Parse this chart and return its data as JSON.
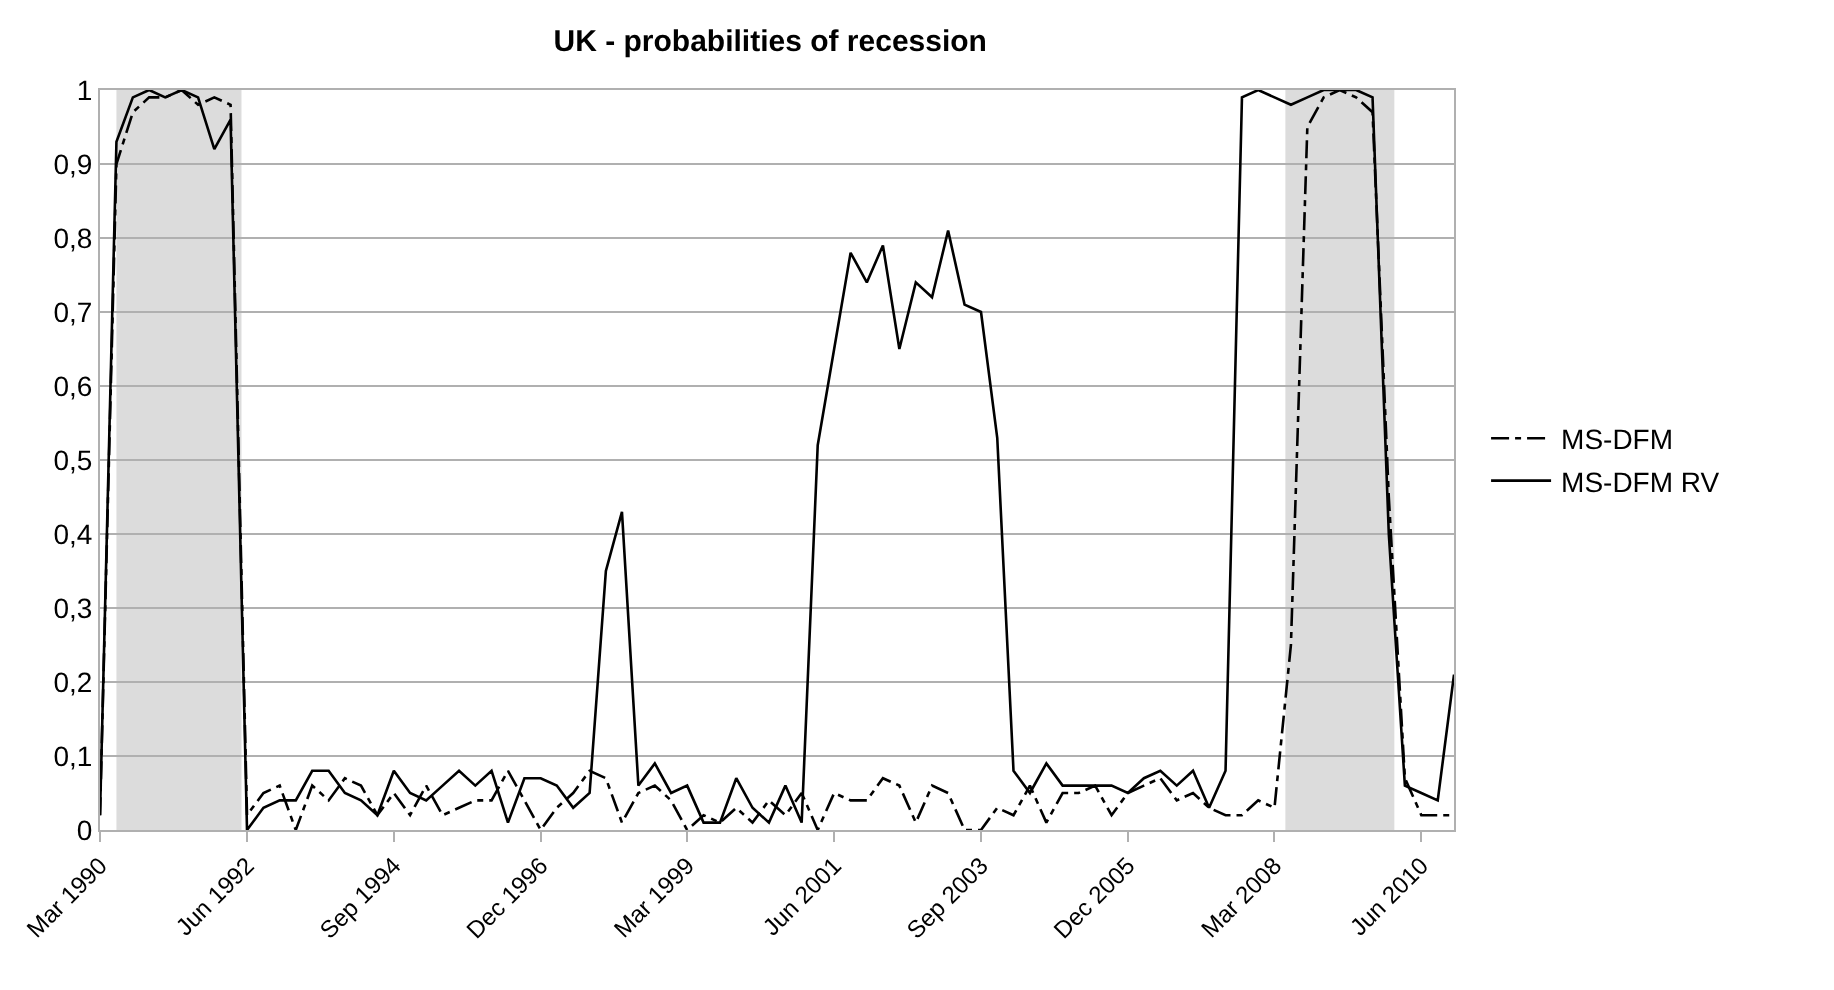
{
  "chart_data": {
    "type": "line",
    "title": "UK - probabilities of recession",
    "x": [
      "1990-03",
      "1990-06",
      "1990-09",
      "1990-12",
      "1991-03",
      "1991-06",
      "1991-09",
      "1991-12",
      "1992-03",
      "1992-06",
      "1992-09",
      "1992-12",
      "1993-03",
      "1993-06",
      "1993-09",
      "1993-12",
      "1994-03",
      "1994-06",
      "1994-09",
      "1994-12",
      "1995-03",
      "1995-06",
      "1995-09",
      "1995-12",
      "1996-03",
      "1996-06",
      "1996-09",
      "1996-12",
      "1997-03",
      "1997-06",
      "1997-09",
      "1997-12",
      "1998-03",
      "1998-06",
      "1998-09",
      "1998-12",
      "1999-03",
      "1999-06",
      "1999-09",
      "1999-12",
      "2000-03",
      "2000-06",
      "2000-09",
      "2000-12",
      "2001-03",
      "2001-06",
      "2001-09",
      "2001-12",
      "2002-03",
      "2002-06",
      "2002-09",
      "2002-12",
      "2003-03",
      "2003-06",
      "2003-09",
      "2003-12",
      "2004-03",
      "2004-06",
      "2004-09",
      "2004-12",
      "2005-03",
      "2005-06",
      "2005-09",
      "2005-12",
      "2006-03",
      "2006-06",
      "2006-09",
      "2006-12",
      "2007-03",
      "2007-06",
      "2007-09",
      "2007-12",
      "2008-03",
      "2008-06",
      "2008-09",
      "2008-12",
      "2009-03",
      "2009-06",
      "2009-09",
      "2009-12",
      "2010-03",
      "2010-06",
      "2010-09",
      "2010-12"
    ],
    "series": [
      {
        "name": "MS-DFM",
        "color": "#000000",
        "line_style": "dashed",
        "values": [
          0.02,
          0.9,
          0.97,
          0.99,
          0.99,
          1.0,
          0.98,
          0.99,
          0.98,
          0.02,
          0.05,
          0.06,
          0.0,
          0.06,
          0.04,
          0.07,
          0.06,
          0.02,
          0.05,
          0.02,
          0.06,
          0.02,
          0.03,
          0.04,
          0.04,
          0.08,
          0.04,
          0.0,
          0.03,
          0.05,
          0.08,
          0.07,
          0.01,
          0.05,
          0.06,
          0.04,
          0.0,
          0.02,
          0.01,
          0.03,
          0.01,
          0.04,
          0.02,
          0.05,
          0.0,
          0.05,
          0.04,
          0.04,
          0.07,
          0.06,
          0.01,
          0.06,
          0.05,
          0.0,
          0.0,
          0.03,
          0.02,
          0.06,
          0.01,
          0.05,
          0.05,
          0.06,
          0.02,
          0.05,
          0.06,
          0.07,
          0.04,
          0.05,
          0.03,
          0.02,
          0.02,
          0.04,
          0.03,
          0.25,
          0.95,
          0.99,
          1.0,
          0.99,
          0.97,
          0.45,
          0.07,
          0.02,
          0.02,
          0.02
        ]
      },
      {
        "name": "MS-DFM RV",
        "color": "#000000",
        "line_style": "solid",
        "values": [
          0.02,
          0.93,
          0.99,
          1.0,
          0.99,
          1.0,
          0.99,
          0.92,
          0.96,
          0.0,
          0.03,
          0.04,
          0.04,
          0.08,
          0.08,
          0.05,
          0.04,
          0.02,
          0.08,
          0.05,
          0.04,
          0.06,
          0.08,
          0.06,
          0.08,
          0.01,
          0.07,
          0.07,
          0.06,
          0.03,
          0.05,
          0.35,
          0.43,
          0.06,
          0.09,
          0.05,
          0.06,
          0.01,
          0.01,
          0.07,
          0.03,
          0.01,
          0.06,
          0.01,
          0.52,
          0.65,
          0.78,
          0.74,
          0.79,
          0.65,
          0.74,
          0.72,
          0.81,
          0.71,
          0.7,
          0.53,
          0.08,
          0.05,
          0.09,
          0.06,
          0.06,
          0.06,
          0.06,
          0.05,
          0.07,
          0.08,
          0.06,
          0.08,
          0.03,
          0.08,
          0.99,
          1.0,
          0.99,
          0.98,
          0.99,
          1.0,
          1.0,
          1.0,
          0.99,
          0.4,
          0.06,
          0.05,
          0.04,
          0.21
        ]
      }
    ],
    "xlim": [
      "1990-03",
      "2010-12"
    ],
    "xticks": [
      {
        "value": "1990-03",
        "label": "Mar 1990"
      },
      {
        "value": "1992-06",
        "label": "Jun 1992"
      },
      {
        "value": "1994-09",
        "label": "Sep 1994"
      },
      {
        "value": "1996-12",
        "label": "Dec 1996"
      },
      {
        "value": "1999-03",
        "label": "Mar 1999"
      },
      {
        "value": "2001-06",
        "label": "Jun 2001"
      },
      {
        "value": "2003-09",
        "label": "Sep 2003"
      },
      {
        "value": "2005-12",
        "label": "Dec 2005"
      },
      {
        "value": "2008-03",
        "label": "Mar 2008"
      },
      {
        "value": "2010-06",
        "label": "Jun 2010"
      }
    ],
    "ylim": [
      0,
      1
    ],
    "yticks": [
      0,
      {
        "value": 0.1,
        "label": "0,1"
      },
      {
        "value": 0.2,
        "label": "0,2"
      },
      {
        "value": 0.3,
        "label": "0,3"
      },
      {
        "value": 0.4,
        "label": "0,4"
      },
      {
        "value": 0.5,
        "label": "0,5"
      },
      {
        "value": 0.6,
        "label": "0,6"
      },
      {
        "value": 0.7,
        "label": "0,7"
      },
      {
        "value": 0.8,
        "label": "0,8"
      },
      {
        "value": 0.9,
        "label": "0,9"
      },
      1
    ],
    "bands": [
      {
        "axis": "x",
        "from": "1990-06",
        "to": "1992-05",
        "color": "#dcdcdc"
      },
      {
        "axis": "x",
        "from": "2008-05",
        "to": "2010-01",
        "color": "#dcdcdc"
      }
    ],
    "grid": "y",
    "legend": "right",
    "marker": "none"
  }
}
